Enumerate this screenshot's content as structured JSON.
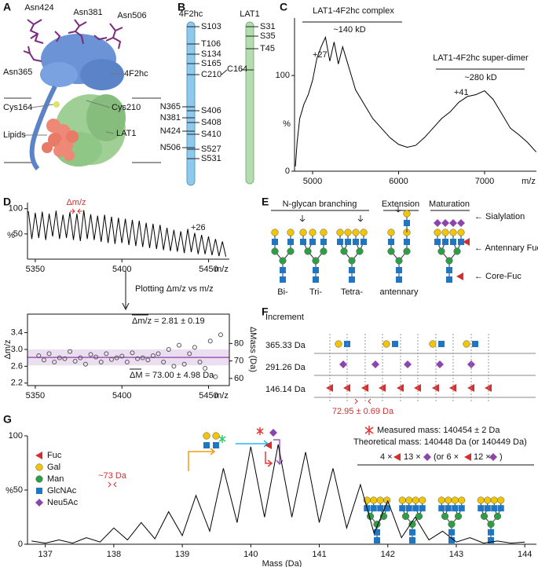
{
  "panels": [
    "A",
    "B",
    "C",
    "D",
    "E",
    "F",
    "G"
  ],
  "panel_a": {
    "labels": [
      "Asn424",
      "Asn381",
      "Asn506",
      "Asn365",
      "4F2hc",
      "Cys164",
      "Cys210",
      "Lipids",
      "LAT1"
    ]
  },
  "panel_b": {
    "headers": [
      "4F2hc",
      "LAT1"
    ],
    "sites_4f2hc": [
      "S103",
      "T106",
      "S134",
      "S165",
      "C210",
      "N365",
      "S406",
      "N381",
      "S408",
      "N424",
      "S410",
      "N506",
      "S527",
      "S531"
    ],
    "sites_lat1": [
      "S31",
      "S35",
      "T45",
      "C164"
    ]
  },
  "panel_d_arrow": "Plotting Δm/z vs m/z",
  "panel_e": {
    "headers": [
      "N-glycan branching",
      "Extension",
      "Maturation"
    ],
    "labels": [
      "Bi-",
      "Tri-",
      "Tetra-",
      "antennary"
    ],
    "notes": [
      "← Sialylation",
      "← Antennary Fuc",
      "← Core-Fuc"
    ]
  },
  "panel_f": {
    "title": "Increment",
    "rows": [
      "365.33 Da",
      "291.26 Da",
      "146.14 Da"
    ],
    "result": "72.95 ± 0.69 Da"
  },
  "chart_data": [
    {
      "type": "line",
      "color": "#000000",
      "x": [
        4800,
        4820,
        4850,
        4900,
        4950,
        5000,
        5050,
        5100,
        5150,
        5200,
        5250,
        5300,
        5350,
        5400,
        5450,
        5500,
        5600,
        5700,
        5800,
        5900,
        6000,
        6100,
        6200,
        6300,
        6400,
        6500,
        6600,
        6700,
        6800,
        6900,
        7000,
        7100,
        7200,
        7300,
        7400,
        7500,
        7600
      ],
      "series": [
        {
          "values": [
            5,
            30,
            55,
            70,
            80,
            95,
            118,
            130,
            140,
            115,
            135,
            112,
            130,
            115,
            100,
            85,
            70,
            55,
            45,
            35,
            28,
            25,
            27,
            35,
            45,
            55,
            62,
            72,
            78,
            80,
            84,
            75,
            60,
            45,
            38,
            30,
            20
          ]
        }
      ],
      "xlim": [
        4790,
        7603
      ],
      "ylim": [
        0,
        160
      ],
      "xticks": [
        5000,
        6000,
        7000
      ],
      "yticks": [
        0,
        100
      ],
      "x_label": "m/z",
      "y_label": "%",
      "annotations": [
        "LAT1-4F2hc complex",
        "~140 kD",
        "+27",
        "LAT1-4F2hc super-dimer",
        "~280 kD",
        "+41"
      ]
    },
    {
      "type": "line",
      "color": "#000000",
      "x": [
        5346,
        5348,
        5350,
        5352,
        5354,
        5356,
        5358,
        5360,
        5362,
        5364,
        5366,
        5368,
        5370,
        5372,
        5374,
        5376,
        5378,
        5380,
        5382,
        5384,
        5386,
        5388,
        5390,
        5392,
        5394,
        5396,
        5398,
        5400,
        5402,
        5404,
        5406,
        5408,
        5410,
        5412,
        5414,
        5416,
        5418,
        5420,
        5422,
        5424,
        5426,
        5428,
        5430,
        5432,
        5434,
        5436,
        5438,
        5440,
        5442,
        5444,
        5446,
        5448,
        5450,
        5452,
        5454,
        5456,
        5458,
        5460
      ],
      "series": [
        {
          "values": [
            95,
            40,
            92,
            42,
            94,
            38,
            90,
            45,
            96,
            40,
            88,
            42,
            93,
            38,
            90,
            36,
            97,
            40,
            89,
            38,
            86,
            34,
            88,
            32,
            84,
            30,
            82,
            32,
            80,
            28,
            78,
            26,
            76,
            24,
            72,
            22,
            70,
            20,
            68,
            18,
            62,
            16,
            58,
            15,
            55,
            12,
            60,
            14,
            52,
            10,
            48,
            10,
            45,
            8,
            40,
            6,
            35,
            5
          ]
        }
      ],
      "xlim": [
        5345.5,
        5462
      ],
      "ylim": [
        0,
        112
      ],
      "xticks": [
        5350,
        5400,
        5450
      ],
      "yticks": [
        50,
        100
      ],
      "x_label": "m/z",
      "y_label": "%",
      "annotations": [
        "Δm/z",
        "+26"
      ]
    },
    {
      "type": "scatter",
      "color": "#555555",
      "frame": true,
      "x": [
        5352,
        5355,
        5358,
        5361,
        5364,
        5367,
        5370,
        5373,
        5376,
        5379,
        5382,
        5385,
        5388,
        5391,
        5394,
        5397,
        5400,
        5403,
        5406,
        5409,
        5412,
        5415,
        5418,
        5421,
        5424,
        5427,
        5430,
        5433,
        5436,
        5439,
        5442,
        5445,
        5448,
        5451,
        5454,
        5457
      ],
      "series": [
        {
          "values": [
            2.85,
            2.75,
            2.9,
            2.7,
            2.8,
            2.78,
            2.95,
            2.72,
            2.8,
            2.65,
            2.88,
            2.82,
            2.7,
            2.9,
            2.76,
            2.8,
            2.84,
            2.7,
            2.92,
            2.78,
            2.8,
            2.75,
            2.85,
            2.9,
            2.7,
            3.0,
            2.6,
            3.1,
            2.65,
            2.9,
            3.05,
            2.7,
            2.55,
            3.2,
            2.35,
            3.35
          ]
        }
      ],
      "mean_band": {
        "mean": 2.81,
        "sd": 0.19,
        "color": "#9b59b6"
      },
      "xlim": [
        5345.5,
        5462
      ],
      "ylim": [
        2.14,
        3.84
      ],
      "xticks": [
        5350,
        5400,
        5450
      ],
      "yticks": [
        2.2,
        2.6,
        {
          "value": 3,
          "label": "3.0"
        },
        3.4
      ],
      "y2lim": [
        55.9,
        96.8
      ],
      "y2ticks": [
        60,
        70,
        80
      ],
      "x_label": "m/z",
      "y_label": "Δm/z",
      "y2_label": "ΔMass (Da)",
      "annotations": [
        "Δm/z = 2.81 ± 0.19",
        "ΔM = 73.00 ± 4.98 Da"
      ]
    },
    {
      "type": "line",
      "color": "#000000",
      "x": [
        136.8,
        137.0,
        137.2,
        137.4,
        137.6,
        137.8,
        138.0,
        138.2,
        138.4,
        138.6,
        138.8,
        139.0,
        139.2,
        139.4,
        139.6,
        139.8,
        140.0,
        140.2,
        140.4,
        140.6,
        140.8,
        141.0,
        141.2,
        141.4,
        141.6,
        141.8,
        142.0,
        142.2,
        142.4,
        142.6,
        142.8,
        143.0,
        143.2,
        143.4,
        143.6,
        143.8,
        144.0
      ],
      "series": [
        {
          "values": [
            3,
            1,
            4,
            1,
            6,
            2,
            15,
            4,
            20,
            5,
            30,
            8,
            45,
            12,
            70,
            20,
            90,
            25,
            92,
            25,
            85,
            20,
            70,
            15,
            55,
            10,
            40,
            6,
            25,
            4,
            12,
            2,
            6,
            1,
            3,
            1,
            2
          ]
        }
      ],
      "xlim": [
        136.74,
        144.17
      ],
      "ylim": [
        0,
        100
      ],
      "xticks": [
        137,
        138,
        139,
        140,
        141,
        142,
        143,
        144
      ],
      "yticks": [
        0,
        50,
        100
      ],
      "x_label": "Mass (Da)",
      "y_label": "%",
      "legend": [
        "Fuc",
        "Gal",
        "Man",
        "GlcNAc",
        "Neu5Ac"
      ],
      "annotations": [
        "~73 Da",
        "Measured mass: 140454 ± 2 Da",
        "Theoretical mass: 140448 Da (or 140449 Da)",
        "4 ×",
        "13 ×",
        "(or 6 ×",
        "12 ×",
        ")"
      ]
    }
  ]
}
